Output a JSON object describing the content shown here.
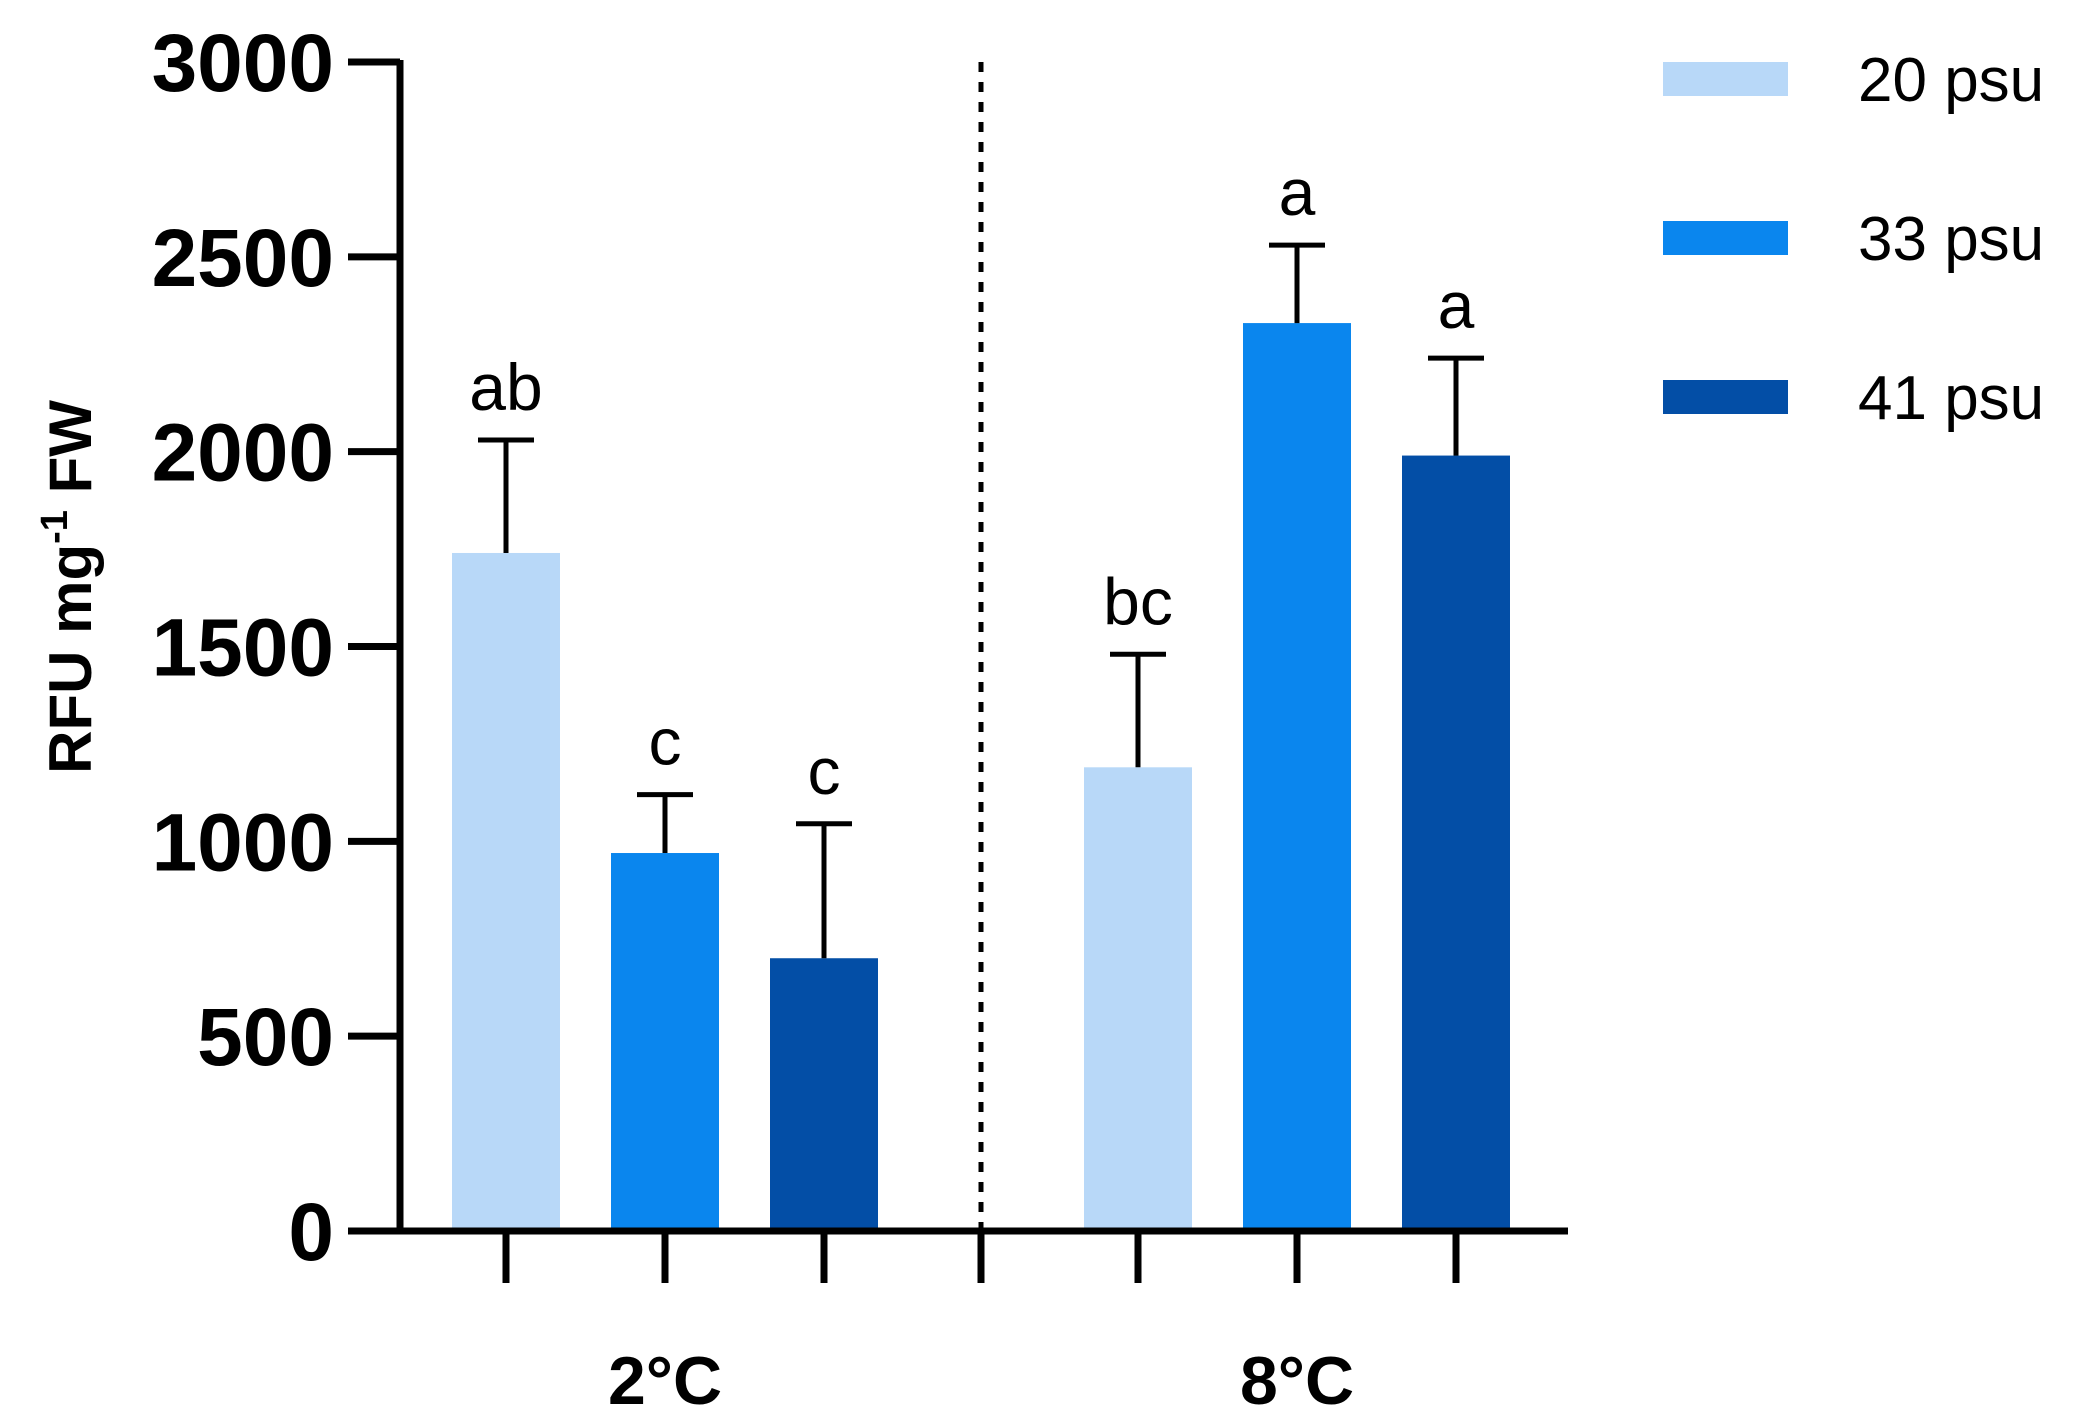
{
  "chart_data": {
    "type": "bar",
    "categories": [
      "2°C",
      "8°C"
    ],
    "series": [
      {
        "name": "20 psu",
        "color": "#b8d8f8",
        "values": [
          1740,
          1190
        ],
        "errors": [
          290,
          290
        ],
        "sig": [
          "ab",
          "bc"
        ]
      },
      {
        "name": "33 psu",
        "color": "#0a86ee",
        "values": [
          970,
          2330
        ],
        "errors": [
          150,
          200
        ],
        "sig": [
          "c",
          "a"
        ]
      },
      {
        "name": "41 psu",
        "color": "#034ea6",
        "values": [
          700,
          1990
        ],
        "errors": [
          345,
          250
        ],
        "sig": [
          "c",
          "a"
        ]
      }
    ],
    "ylabel": {
      "main": "RFU mg",
      "superscript": "-1",
      "suffix": " FW"
    },
    "ylim": [
      0,
      3000
    ],
    "yticks": [
      0,
      500,
      1000,
      1500,
      2000,
      2500,
      3000
    ],
    "legend_position": "top-right",
    "group_separator": "dotted vertical line between groups",
    "grid": false
  }
}
